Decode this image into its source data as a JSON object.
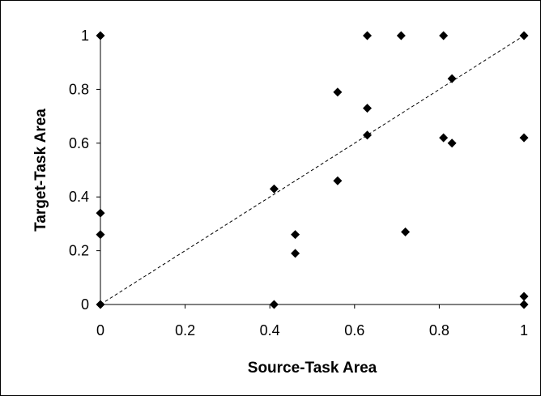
{
  "chart_data": {
    "type": "scatter",
    "title": "",
    "xlabel": "Source-Task Area",
    "ylabel": "Target-Task Area",
    "xlim": [
      0,
      1
    ],
    "ylim": [
      0,
      1
    ],
    "x_ticks": [
      "0",
      "0.2",
      "0.4",
      "0.6",
      "0.8",
      "1"
    ],
    "y_ticks": [
      "0",
      "0.2",
      "0.4",
      "0.6",
      "0.8",
      "1"
    ],
    "grid": false,
    "legend": "none",
    "marker": "diamond",
    "marker_color": "#000000",
    "reference_line": {
      "style": "dashed",
      "x": [
        0,
        1
      ],
      "y": [
        0,
        1
      ]
    },
    "points": [
      {
        "x": 0.0,
        "y": 1.0
      },
      {
        "x": 0.0,
        "y": 0.34
      },
      {
        "x": 0.0,
        "y": 0.26
      },
      {
        "x": 0.0,
        "y": 0.0
      },
      {
        "x": 0.41,
        "y": 0.43
      },
      {
        "x": 0.41,
        "y": 0.0
      },
      {
        "x": 0.46,
        "y": 0.26
      },
      {
        "x": 0.46,
        "y": 0.19
      },
      {
        "x": 0.56,
        "y": 0.79
      },
      {
        "x": 0.56,
        "y": 0.46
      },
      {
        "x": 0.63,
        "y": 1.0
      },
      {
        "x": 0.63,
        "y": 0.73
      },
      {
        "x": 0.63,
        "y": 0.63
      },
      {
        "x": 0.71,
        "y": 1.0
      },
      {
        "x": 0.72,
        "y": 0.27
      },
      {
        "x": 0.81,
        "y": 1.0
      },
      {
        "x": 0.81,
        "y": 0.62
      },
      {
        "x": 0.83,
        "y": 0.84
      },
      {
        "x": 0.83,
        "y": 0.6
      },
      {
        "x": 1.0,
        "y": 1.0
      },
      {
        "x": 1.0,
        "y": 0.62
      },
      {
        "x": 1.0,
        "y": 0.03
      },
      {
        "x": 1.0,
        "y": 0.0
      }
    ]
  }
}
